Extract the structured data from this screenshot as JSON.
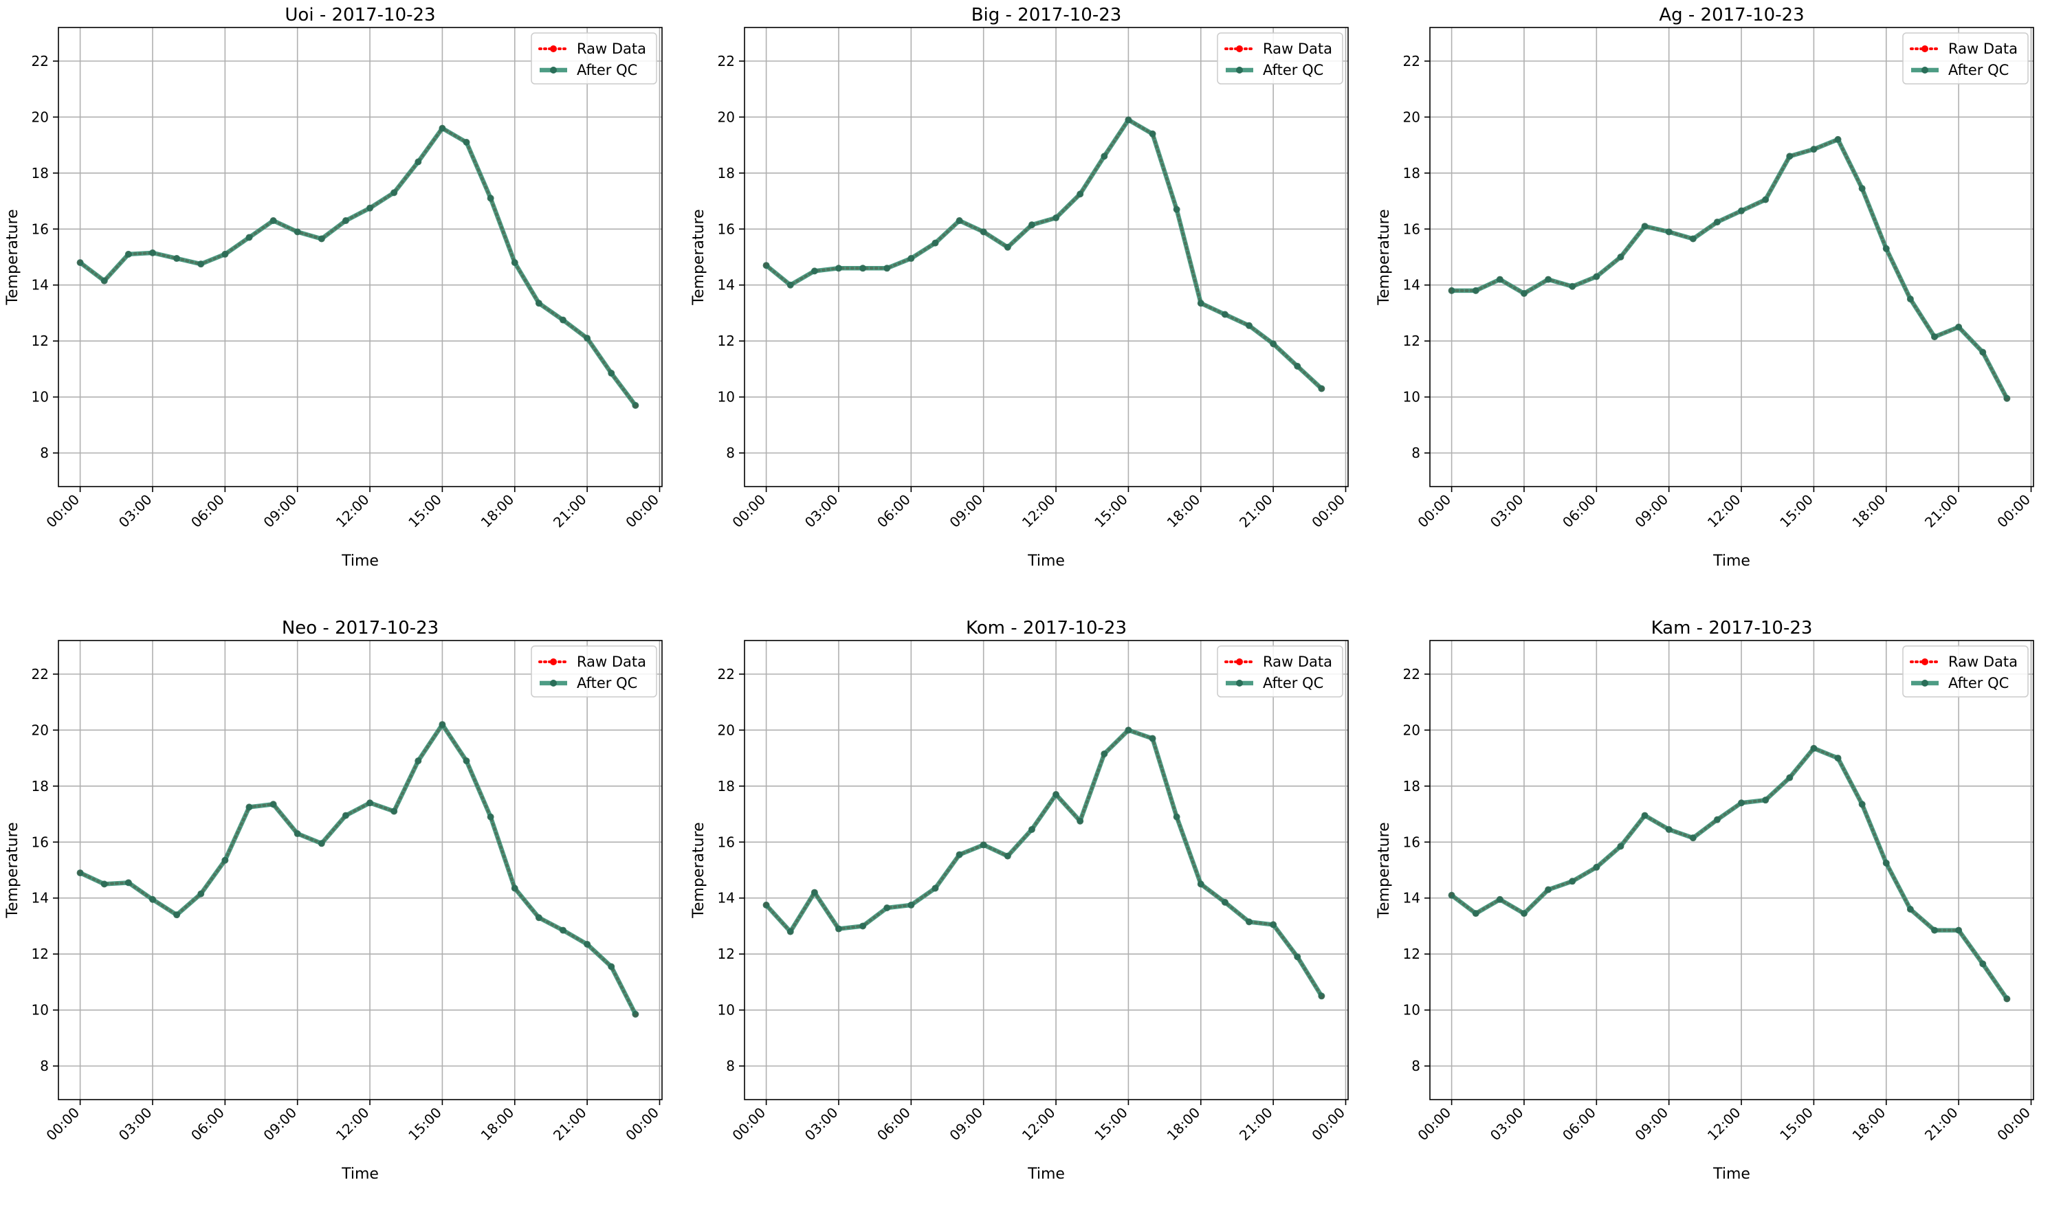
{
  "figure": {
    "background": "#ffffff"
  },
  "colors": {
    "raw": "#ff0000",
    "qc": "#2e8b6e",
    "grid": "#b0b0b0"
  },
  "legend": {
    "raw_label": "Raw Data",
    "qc_label": "After QC",
    "placement": "upper right"
  },
  "chart_data": [
    {
      "type": "line",
      "title": "Uoi - 2017-10-23",
      "xlabel": "Time",
      "ylabel": "Temperature",
      "xlim": [
        -0.9,
        24.1
      ],
      "ylim": [
        6.8,
        23.2
      ],
      "grid": true,
      "x_ticks": [
        0,
        3,
        6,
        9,
        12,
        15,
        18,
        21,
        24
      ],
      "x_tick_labels": [
        "00:00",
        "03:00",
        "06:00",
        "09:00",
        "12:00",
        "15:00",
        "18:00",
        "21:00",
        "00:00"
      ],
      "y_ticks": [
        8,
        10,
        12,
        14,
        16,
        18,
        20,
        22
      ],
      "y_tick_labels": [
        "8",
        "10",
        "12",
        "14",
        "16",
        "18",
        "20",
        "22"
      ],
      "x": [
        0,
        1,
        2,
        3,
        4,
        5,
        6,
        7,
        8,
        9,
        10,
        11,
        12,
        13,
        14,
        15,
        16,
        17,
        18,
        19,
        20,
        21,
        22,
        23
      ],
      "series": [
        {
          "name": "Raw Data",
          "values": [
            14.8,
            14.15,
            15.1,
            15.15,
            14.95,
            14.75,
            15.1,
            15.7,
            16.3,
            15.9,
            15.65,
            16.3,
            16.75,
            17.3,
            18.4,
            19.6,
            19.1,
            17.1,
            14.8,
            13.35,
            12.75,
            12.1,
            10.85,
            9.7
          ]
        },
        {
          "name": "After QC",
          "values": [
            14.8,
            14.15,
            15.1,
            15.15,
            14.95,
            14.75,
            15.1,
            15.7,
            16.3,
            15.9,
            15.65,
            16.3,
            16.75,
            17.3,
            18.4,
            19.6,
            19.1,
            17.1,
            14.8,
            13.35,
            12.75,
            12.1,
            10.85,
            9.7
          ]
        }
      ]
    },
    {
      "type": "line",
      "title": "Big - 2017-10-23",
      "xlabel": "Time",
      "ylabel": "Temperature",
      "xlim": [
        -0.9,
        24.1
      ],
      "ylim": [
        6.8,
        23.2
      ],
      "grid": true,
      "x_ticks": [
        0,
        3,
        6,
        9,
        12,
        15,
        18,
        21,
        24
      ],
      "x_tick_labels": [
        "00:00",
        "03:00",
        "06:00",
        "09:00",
        "12:00",
        "15:00",
        "18:00",
        "21:00",
        "00:00"
      ],
      "y_ticks": [
        8,
        10,
        12,
        14,
        16,
        18,
        20,
        22
      ],
      "y_tick_labels": [
        "8",
        "10",
        "12",
        "14",
        "16",
        "18",
        "20",
        "22"
      ],
      "x": [
        0,
        1,
        2,
        3,
        4,
        5,
        6,
        7,
        8,
        9,
        10,
        11,
        12,
        13,
        14,
        15,
        16,
        17,
        18,
        19,
        20,
        21,
        22,
        23
      ],
      "series": [
        {
          "name": "Raw Data",
          "values": [
            14.7,
            14.0,
            14.5,
            14.6,
            14.6,
            14.6,
            14.95,
            15.5,
            16.3,
            15.9,
            15.35,
            16.15,
            16.4,
            17.25,
            18.6,
            19.9,
            19.4,
            16.7,
            13.35,
            12.95,
            12.55,
            11.9,
            11.1,
            10.3
          ]
        },
        {
          "name": "After QC",
          "values": [
            14.7,
            14.0,
            14.5,
            14.6,
            14.6,
            14.6,
            14.95,
            15.5,
            16.3,
            15.9,
            15.35,
            16.15,
            16.4,
            17.25,
            18.6,
            19.9,
            19.4,
            16.7,
            13.35,
            12.95,
            12.55,
            11.9,
            11.1,
            10.3
          ]
        }
      ]
    },
    {
      "type": "line",
      "title": "Ag - 2017-10-23",
      "xlabel": "Time",
      "ylabel": "Temperature",
      "xlim": [
        -0.9,
        24.1
      ],
      "ylim": [
        6.8,
        23.2
      ],
      "grid": true,
      "x_ticks": [
        0,
        3,
        6,
        9,
        12,
        15,
        18,
        21,
        24
      ],
      "x_tick_labels": [
        "00:00",
        "03:00",
        "06:00",
        "09:00",
        "12:00",
        "15:00",
        "18:00",
        "21:00",
        "00:00"
      ],
      "y_ticks": [
        8,
        10,
        12,
        14,
        16,
        18,
        20,
        22
      ],
      "y_tick_labels": [
        "8",
        "10",
        "12",
        "14",
        "16",
        "18",
        "20",
        "22"
      ],
      "x": [
        0,
        1,
        2,
        3,
        4,
        5,
        6,
        7,
        8,
        9,
        10,
        11,
        12,
        13,
        14,
        15,
        16,
        17,
        18,
        19,
        20,
        21,
        22,
        23
      ],
      "series": [
        {
          "name": "Raw Data",
          "values": [
            13.8,
            13.8,
            14.2,
            13.7,
            14.2,
            13.95,
            14.3,
            15.0,
            16.1,
            15.9,
            15.65,
            16.25,
            16.65,
            17.05,
            18.6,
            18.85,
            19.2,
            17.45,
            15.3,
            13.5,
            12.15,
            12.5,
            11.6,
            9.95
          ]
        },
        {
          "name": "After QC",
          "values": [
            13.8,
            13.8,
            14.2,
            13.7,
            14.2,
            13.95,
            14.3,
            15.0,
            16.1,
            15.9,
            15.65,
            16.25,
            16.65,
            17.05,
            18.6,
            18.85,
            19.2,
            17.45,
            15.3,
            13.5,
            12.15,
            12.5,
            11.6,
            9.95
          ]
        }
      ]
    },
    {
      "type": "line",
      "title": "Neo - 2017-10-23",
      "xlabel": "Time",
      "ylabel": "Temperature",
      "xlim": [
        -0.9,
        24.1
      ],
      "ylim": [
        6.8,
        23.2
      ],
      "grid": true,
      "x_ticks": [
        0,
        3,
        6,
        9,
        12,
        15,
        18,
        21,
        24
      ],
      "x_tick_labels": [
        "00:00",
        "03:00",
        "06:00",
        "09:00",
        "12:00",
        "15:00",
        "18:00",
        "21:00",
        "00:00"
      ],
      "y_ticks": [
        8,
        10,
        12,
        14,
        16,
        18,
        20,
        22
      ],
      "y_tick_labels": [
        "8",
        "10",
        "12",
        "14",
        "16",
        "18",
        "20",
        "22"
      ],
      "x": [
        0,
        1,
        2,
        3,
        4,
        5,
        6,
        7,
        8,
        9,
        10,
        11,
        12,
        13,
        14,
        15,
        16,
        17,
        18,
        19,
        20,
        21,
        22,
        23
      ],
      "series": [
        {
          "name": "Raw Data",
          "values": [
            14.9,
            14.5,
            14.55,
            13.95,
            13.4,
            14.15,
            15.35,
            17.25,
            17.35,
            16.3,
            15.95,
            16.95,
            17.4,
            17.1,
            18.9,
            20.2,
            18.9,
            16.9,
            14.35,
            13.3,
            12.85,
            12.35,
            11.55,
            9.85
          ]
        },
        {
          "name": "After QC",
          "values": [
            14.9,
            14.5,
            14.55,
            13.95,
            13.4,
            14.15,
            15.35,
            17.25,
            17.35,
            16.3,
            15.95,
            16.95,
            17.4,
            17.1,
            18.9,
            20.2,
            18.9,
            16.9,
            14.35,
            13.3,
            12.85,
            12.35,
            11.55,
            9.85
          ]
        }
      ]
    },
    {
      "type": "line",
      "title": "Kom - 2017-10-23",
      "xlabel": "Time",
      "ylabel": "Temperature",
      "xlim": [
        -0.9,
        24.1
      ],
      "ylim": [
        6.8,
        23.2
      ],
      "grid": true,
      "x_ticks": [
        0,
        3,
        6,
        9,
        12,
        15,
        18,
        21,
        24
      ],
      "x_tick_labels": [
        "00:00",
        "03:00",
        "06:00",
        "09:00",
        "12:00",
        "15:00",
        "18:00",
        "21:00",
        "00:00"
      ],
      "y_ticks": [
        8,
        10,
        12,
        14,
        16,
        18,
        20,
        22
      ],
      "y_tick_labels": [
        "8",
        "10",
        "12",
        "14",
        "16",
        "18",
        "20",
        "22"
      ],
      "x": [
        0,
        1,
        2,
        3,
        4,
        5,
        6,
        7,
        8,
        9,
        10,
        11,
        12,
        13,
        14,
        15,
        16,
        17,
        18,
        19,
        20,
        21,
        22,
        23
      ],
      "series": [
        {
          "name": "Raw Data",
          "values": [
            13.75,
            12.8,
            14.2,
            12.9,
            13.0,
            13.65,
            13.75,
            14.35,
            15.55,
            15.9,
            15.5,
            16.45,
            17.7,
            16.75,
            19.15,
            20.0,
            19.7,
            16.9,
            14.5,
            13.85,
            13.15,
            13.05,
            11.9,
            10.5
          ]
        },
        {
          "name": "After QC",
          "values": [
            13.75,
            12.8,
            14.2,
            12.9,
            13.0,
            13.65,
            13.75,
            14.35,
            15.55,
            15.9,
            15.5,
            16.45,
            17.7,
            16.75,
            19.15,
            20.0,
            19.7,
            16.9,
            14.5,
            13.85,
            13.15,
            13.05,
            11.9,
            10.5
          ]
        }
      ]
    },
    {
      "type": "line",
      "title": "Kam - 2017-10-23",
      "xlabel": "Time",
      "ylabel": "Temperature",
      "xlim": [
        -0.9,
        24.1
      ],
      "ylim": [
        6.8,
        23.2
      ],
      "grid": true,
      "x_ticks": [
        0,
        3,
        6,
        9,
        12,
        15,
        18,
        21,
        24
      ],
      "x_tick_labels": [
        "00:00",
        "03:00",
        "06:00",
        "09:00",
        "12:00",
        "15:00",
        "18:00",
        "21:00",
        "00:00"
      ],
      "y_ticks": [
        8,
        10,
        12,
        14,
        16,
        18,
        20,
        22
      ],
      "y_tick_labels": [
        "8",
        "10",
        "12",
        "14",
        "16",
        "18",
        "20",
        "22"
      ],
      "x": [
        0,
        1,
        2,
        3,
        4,
        5,
        6,
        7,
        8,
        9,
        10,
        11,
        12,
        13,
        14,
        15,
        16,
        17,
        18,
        19,
        20,
        21,
        22,
        23
      ],
      "series": [
        {
          "name": "Raw Data",
          "values": [
            14.1,
            13.45,
            13.95,
            13.45,
            14.3,
            14.6,
            15.1,
            15.85,
            16.95,
            16.45,
            16.15,
            16.8,
            17.4,
            17.5,
            18.3,
            19.35,
            19.0,
            17.35,
            15.25,
            13.6,
            12.85,
            12.85,
            11.65,
            10.4
          ]
        },
        {
          "name": "After QC",
          "values": [
            14.1,
            13.45,
            13.95,
            13.45,
            14.3,
            14.6,
            15.1,
            15.85,
            16.95,
            16.45,
            16.15,
            16.8,
            17.4,
            17.5,
            18.3,
            19.35,
            19.0,
            17.35,
            15.25,
            13.6,
            12.85,
            12.85,
            11.65,
            10.4
          ]
        }
      ]
    }
  ]
}
